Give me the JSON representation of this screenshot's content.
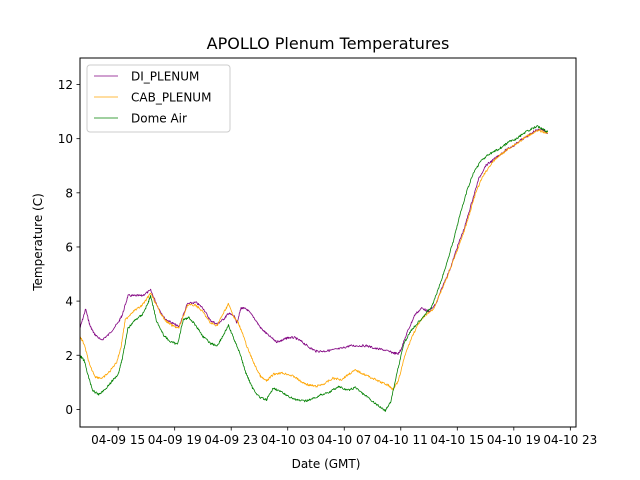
{
  "chart_data": {
    "type": "line",
    "title": "APOLLO Plenum Temperatures",
    "xlabel": "Date (GMT)",
    "ylabel": "Temperature (C)",
    "xlim": [
      12.3,
      47.4
    ],
    "ylim": [
      -0.65,
      12.98
    ],
    "x_unit": "hours since 04-09 00:00 GMT",
    "x_ticks": [
      {
        "value": 15,
        "label": "04-09 15"
      },
      {
        "value": 19,
        "label": "04-09 19"
      },
      {
        "value": 23,
        "label": "04-09 23"
      },
      {
        "value": 27,
        "label": "04-10 03"
      },
      {
        "value": 31,
        "label": "04-10 07"
      },
      {
        "value": 35,
        "label": "04-10 11"
      },
      {
        "value": 39,
        "label": "04-10 15"
      },
      {
        "value": 43,
        "label": "04-10 19"
      },
      {
        "value": 47,
        "label": "04-10 23"
      }
    ],
    "y_ticks": [
      {
        "value": 0,
        "label": "0"
      },
      {
        "value": 2,
        "label": "2"
      },
      {
        "value": 4,
        "label": "4"
      },
      {
        "value": 6,
        "label": "6"
      },
      {
        "value": 8,
        "label": "8"
      },
      {
        "value": 10,
        "label": "10"
      },
      {
        "value": 12,
        "label": "12"
      }
    ],
    "legend_position": "top-left",
    "series": [
      {
        "name": "DI_PLENUM",
        "color": "#800080",
        "points": [
          [
            12.3,
            3.0
          ],
          [
            12.7,
            3.7
          ],
          [
            13.0,
            3.1
          ],
          [
            13.3,
            2.8
          ],
          [
            13.8,
            2.55
          ],
          [
            14.3,
            2.75
          ],
          [
            15.0,
            3.2
          ],
          [
            15.3,
            3.5
          ],
          [
            15.7,
            4.2
          ],
          [
            16.2,
            4.2
          ],
          [
            16.7,
            4.2
          ],
          [
            17.3,
            4.4
          ],
          [
            17.8,
            3.8
          ],
          [
            18.3,
            3.35
          ],
          [
            18.8,
            3.2
          ],
          [
            19.3,
            3.05
          ],
          [
            19.9,
            3.9
          ],
          [
            20.5,
            3.95
          ],
          [
            21.0,
            3.75
          ],
          [
            21.5,
            3.3
          ],
          [
            22.0,
            3.15
          ],
          [
            22.5,
            3.35
          ],
          [
            22.8,
            3.55
          ],
          [
            23.2,
            3.45
          ],
          [
            23.4,
            3.2
          ],
          [
            23.7,
            3.75
          ],
          [
            24.1,
            3.7
          ],
          [
            24.6,
            3.4
          ],
          [
            25.1,
            3.0
          ],
          [
            25.6,
            2.75
          ],
          [
            26.2,
            2.5
          ],
          [
            26.6,
            2.55
          ],
          [
            27.0,
            2.65
          ],
          [
            27.5,
            2.65
          ],
          [
            28.0,
            2.5
          ],
          [
            28.5,
            2.3
          ],
          [
            29.0,
            2.15
          ],
          [
            29.6,
            2.15
          ],
          [
            30.2,
            2.2
          ],
          [
            30.8,
            2.25
          ],
          [
            31.4,
            2.35
          ],
          [
            32.0,
            2.35
          ],
          [
            32.6,
            2.35
          ],
          [
            33.2,
            2.25
          ],
          [
            33.8,
            2.2
          ],
          [
            34.4,
            2.1
          ],
          [
            34.8,
            2.05
          ],
          [
            35.0,
            2.2
          ],
          [
            35.5,
            2.9
          ],
          [
            36.0,
            3.5
          ],
          [
            36.5,
            3.75
          ],
          [
            37.0,
            3.6
          ],
          [
            37.5,
            3.9
          ],
          [
            38.0,
            4.6
          ],
          [
            38.5,
            5.2
          ],
          [
            39.0,
            6.0
          ],
          [
            39.5,
            6.7
          ],
          [
            40.0,
            7.6
          ],
          [
            40.5,
            8.5
          ],
          [
            41.0,
            9.0
          ],
          [
            41.5,
            9.2
          ],
          [
            42.0,
            9.4
          ],
          [
            42.5,
            9.6
          ],
          [
            43.0,
            9.75
          ],
          [
            43.5,
            9.95
          ],
          [
            44.0,
            10.1
          ],
          [
            44.5,
            10.3
          ],
          [
            45.0,
            10.35
          ],
          [
            45.4,
            10.2
          ]
        ]
      },
      {
        "name": "CAB_PLENUM",
        "color": "#FFA500",
        "points": [
          [
            12.3,
            2.7
          ],
          [
            12.6,
            2.4
          ],
          [
            13.0,
            1.6
          ],
          [
            13.4,
            1.2
          ],
          [
            13.9,
            1.15
          ],
          [
            14.4,
            1.4
          ],
          [
            14.9,
            1.75
          ],
          [
            15.2,
            2.3
          ],
          [
            15.5,
            3.3
          ],
          [
            16.0,
            3.6
          ],
          [
            16.6,
            3.8
          ],
          [
            17.0,
            4.05
          ],
          [
            17.3,
            4.3
          ],
          [
            17.8,
            3.75
          ],
          [
            18.3,
            3.3
          ],
          [
            18.8,
            3.1
          ],
          [
            19.3,
            3.0
          ],
          [
            19.9,
            3.85
          ],
          [
            20.5,
            3.85
          ],
          [
            21.0,
            3.6
          ],
          [
            21.5,
            3.2
          ],
          [
            22.0,
            3.1
          ],
          [
            22.5,
            3.6
          ],
          [
            22.8,
            3.9
          ],
          [
            23.2,
            3.4
          ],
          [
            23.5,
            3.2
          ],
          [
            23.8,
            2.8
          ],
          [
            24.2,
            2.2
          ],
          [
            24.7,
            1.6
          ],
          [
            25.1,
            1.2
          ],
          [
            25.5,
            1.05
          ],
          [
            26.0,
            1.3
          ],
          [
            26.5,
            1.35
          ],
          [
            27.0,
            1.3
          ],
          [
            27.5,
            1.2
          ],
          [
            28.0,
            1.0
          ],
          [
            28.5,
            0.9
          ],
          [
            29.0,
            0.85
          ],
          [
            29.6,
            0.95
          ],
          [
            30.2,
            1.15
          ],
          [
            30.8,
            1.1
          ],
          [
            31.3,
            1.3
          ],
          [
            31.8,
            1.45
          ],
          [
            32.4,
            1.3
          ],
          [
            33.0,
            1.15
          ],
          [
            33.6,
            1.0
          ],
          [
            34.1,
            0.9
          ],
          [
            34.4,
            0.75
          ],
          [
            34.8,
            1.0
          ],
          [
            35.3,
            2.0
          ],
          [
            35.8,
            2.7
          ],
          [
            36.3,
            3.2
          ],
          [
            36.8,
            3.5
          ],
          [
            37.3,
            3.7
          ],
          [
            37.8,
            4.3
          ],
          [
            38.3,
            4.9
          ],
          [
            38.8,
            5.6
          ],
          [
            39.3,
            6.3
          ],
          [
            39.8,
            7.1
          ],
          [
            40.3,
            8.0
          ],
          [
            40.8,
            8.6
          ],
          [
            41.3,
            9.0
          ],
          [
            41.8,
            9.3
          ],
          [
            42.3,
            9.5
          ],
          [
            42.8,
            9.7
          ],
          [
            43.3,
            9.85
          ],
          [
            43.8,
            10.05
          ],
          [
            44.3,
            10.2
          ],
          [
            44.8,
            10.3
          ],
          [
            45.4,
            10.2
          ]
        ]
      },
      {
        "name": "Dome Air",
        "color": "#008000",
        "points": [
          [
            12.3,
            2.0
          ],
          [
            12.6,
            1.8
          ],
          [
            12.9,
            1.2
          ],
          [
            13.2,
            0.7
          ],
          [
            13.6,
            0.55
          ],
          [
            14.0,
            0.7
          ],
          [
            14.5,
            1.0
          ],
          [
            15.0,
            1.3
          ],
          [
            15.3,
            1.9
          ],
          [
            15.7,
            3.0
          ],
          [
            16.2,
            3.3
          ],
          [
            16.7,
            3.5
          ],
          [
            17.1,
            3.9
          ],
          [
            17.3,
            4.2
          ],
          [
            17.7,
            3.3
          ],
          [
            18.2,
            2.75
          ],
          [
            18.7,
            2.5
          ],
          [
            19.2,
            2.4
          ],
          [
            19.6,
            3.3
          ],
          [
            20.0,
            3.4
          ],
          [
            20.5,
            3.1
          ],
          [
            21.0,
            2.7
          ],
          [
            21.5,
            2.45
          ],
          [
            22.0,
            2.35
          ],
          [
            22.4,
            2.7
          ],
          [
            22.8,
            3.1
          ],
          [
            23.2,
            2.6
          ],
          [
            23.6,
            2.1
          ],
          [
            24.0,
            1.4
          ],
          [
            24.5,
            0.8
          ],
          [
            25.0,
            0.45
          ],
          [
            25.5,
            0.35
          ],
          [
            26.0,
            0.8
          ],
          [
            26.5,
            0.65
          ],
          [
            27.0,
            0.5
          ],
          [
            27.6,
            0.35
          ],
          [
            28.2,
            0.3
          ],
          [
            28.8,
            0.4
          ],
          [
            29.4,
            0.55
          ],
          [
            30.0,
            0.65
          ],
          [
            30.6,
            0.85
          ],
          [
            31.2,
            0.7
          ],
          [
            31.8,
            0.8
          ],
          [
            32.4,
            0.55
          ],
          [
            33.0,
            0.3
          ],
          [
            33.5,
            0.1
          ],
          [
            33.9,
            -0.05
          ],
          [
            34.3,
            0.3
          ],
          [
            34.8,
            1.5
          ],
          [
            35.2,
            2.4
          ],
          [
            35.7,
            2.9
          ],
          [
            36.2,
            3.2
          ],
          [
            36.7,
            3.5
          ],
          [
            37.2,
            3.8
          ],
          [
            37.7,
            4.5
          ],
          [
            38.2,
            5.3
          ],
          [
            38.7,
            6.2
          ],
          [
            39.2,
            7.2
          ],
          [
            39.7,
            8.1
          ],
          [
            40.2,
            8.8
          ],
          [
            40.7,
            9.2
          ],
          [
            41.2,
            9.4
          ],
          [
            41.7,
            9.55
          ],
          [
            42.2,
            9.7
          ],
          [
            42.7,
            9.9
          ],
          [
            43.2,
            10.0
          ],
          [
            43.7,
            10.2
          ],
          [
            44.2,
            10.35
          ],
          [
            44.7,
            10.45
          ],
          [
            45.1,
            10.35
          ],
          [
            45.4,
            10.25
          ]
        ]
      }
    ]
  }
}
